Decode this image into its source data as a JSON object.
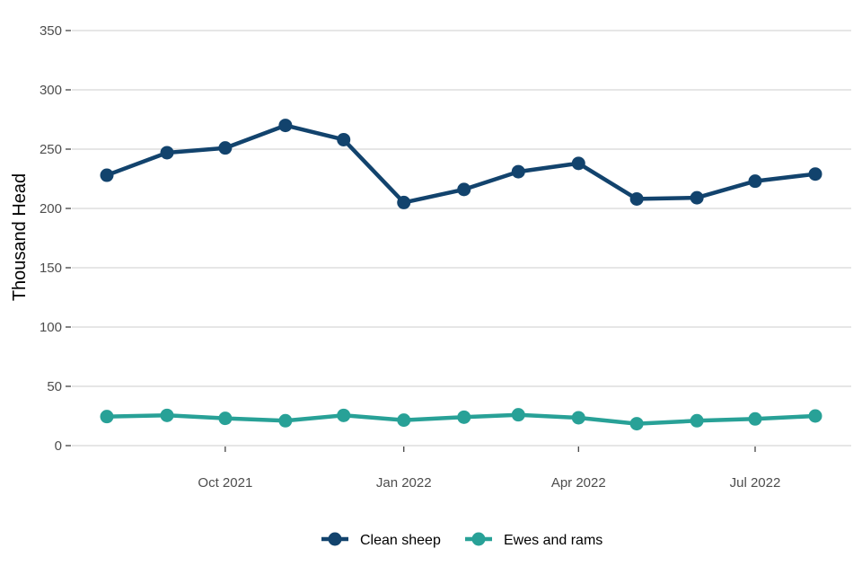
{
  "chart_data": {
    "type": "line",
    "ylabel": "Thousand Head",
    "xlabel": "",
    "ylim": [
      0,
      350
    ],
    "y_ticks": [
      0,
      50,
      100,
      150,
      200,
      250,
      300,
      350
    ],
    "x_tick_labels": [
      "Oct 2021",
      "Jan 2022",
      "Apr 2022",
      "Jul 2022"
    ],
    "x_tick_dates": [
      "2021-10-01",
      "2022-01-01",
      "2022-04-01",
      "2022-07-01"
    ],
    "x": [
      "2021-08-01",
      "2021-09-01",
      "2021-10-01",
      "2021-11-01",
      "2021-12-01",
      "2022-01-01",
      "2022-02-01",
      "2022-03-01",
      "2022-04-01",
      "2022-05-01",
      "2022-06-01",
      "2022-07-01",
      "2022-08-01"
    ],
    "grid": "horizontal",
    "legend_position": "bottom",
    "series": [
      {
        "name": "Clean sheep",
        "color": "#12436D",
        "values": [
          228,
          247,
          251,
          270,
          258,
          205,
          216,
          231,
          238,
          208,
          209,
          223,
          229
        ]
      },
      {
        "name": "Ewes and rams",
        "color": "#28A197",
        "values": [
          24.5,
          25.5,
          23,
          21,
          25.5,
          21.5,
          24,
          26,
          23.5,
          18.5,
          21,
          22.5,
          25
        ]
      }
    ]
  }
}
